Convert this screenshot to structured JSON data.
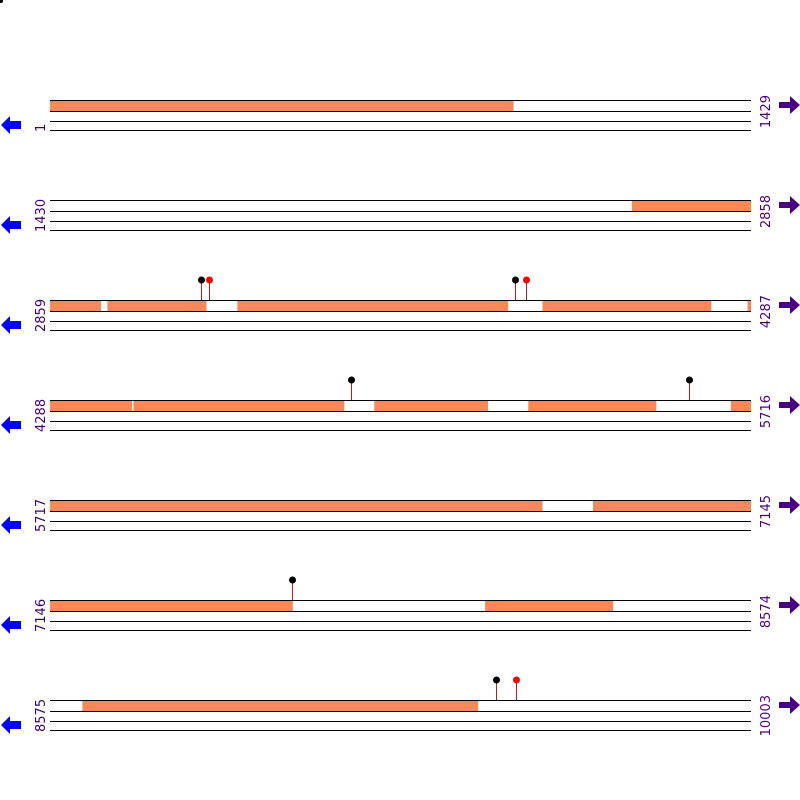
{
  "colors": {
    "feature": "#F98758",
    "line": "#000000",
    "left_label": "#3c0070",
    "right_label": "#4b0082",
    "left_arrow": "#0000ff",
    "right_arrow": "#4b0082",
    "marker_black": "#000000",
    "marker_red": "#ff0000",
    "marker_stem": "#b22222"
  },
  "icons": {
    "left": "arrow-left-icon",
    "right": "arrow-right-icon"
  },
  "rows": [
    {
      "start_label": "1",
      "end_label": "1429",
      "start": 1,
      "end": 1429,
      "features": [
        [
          1,
          945
        ]
      ],
      "markers": []
    },
    {
      "start_label": "1430",
      "end_label": "2858",
      "start": 1430,
      "end": 2858,
      "features": [
        [
          2616,
          2858
        ]
      ],
      "markers": []
    },
    {
      "start_label": "2859",
      "end_label": "4287",
      "start": 2859,
      "end": 4287,
      "features": [
        [
          2859,
          2962
        ],
        [
          2976,
          3177
        ],
        [
          3241,
          3792
        ],
        [
          3863,
          4206
        ],
        [
          4281,
          4287
        ]
      ],
      "markers": [
        {
          "pos": 3167,
          "color": "black"
        },
        {
          "pos": 3184,
          "color": "red"
        },
        {
          "pos": 3807,
          "color": "black"
        },
        {
          "pos": 3829,
          "color": "red"
        }
      ]
    },
    {
      "start_label": "4288",
      "end_label": "5716",
      "start": 4288,
      "end": 5716,
      "features": [
        [
          4288,
          4454
        ],
        [
          4458,
          4887
        ],
        [
          4949,
          5180
        ],
        [
          5263,
          5523
        ],
        [
          5676,
          5716
        ]
      ],
      "markers": [
        {
          "pos": 4901,
          "color": "black"
        },
        {
          "pos": 5590,
          "color": "black"
        }
      ]
    },
    {
      "start_label": "5717",
      "end_label": "7145",
      "start": 5717,
      "end": 7145,
      "features": [
        [
          5717,
          6720
        ],
        [
          6824,
          7145
        ]
      ],
      "markers": []
    },
    {
      "start_label": "7146",
      "end_label": "8574",
      "start": 7146,
      "end": 8574,
      "features": [
        [
          7146,
          7640
        ],
        [
          8033,
          8293
        ]
      ],
      "markers": [
        {
          "pos": 7639,
          "color": "black"
        }
      ]
    },
    {
      "start_label": "8575",
      "end_label": "10003",
      "start": 8575,
      "end": 10003,
      "features": [
        [
          8641,
          9447
        ]
      ],
      "markers": [
        {
          "pos": 9485,
          "color": "black"
        },
        {
          "pos": 9524,
          "color": "red"
        }
      ]
    }
  ]
}
